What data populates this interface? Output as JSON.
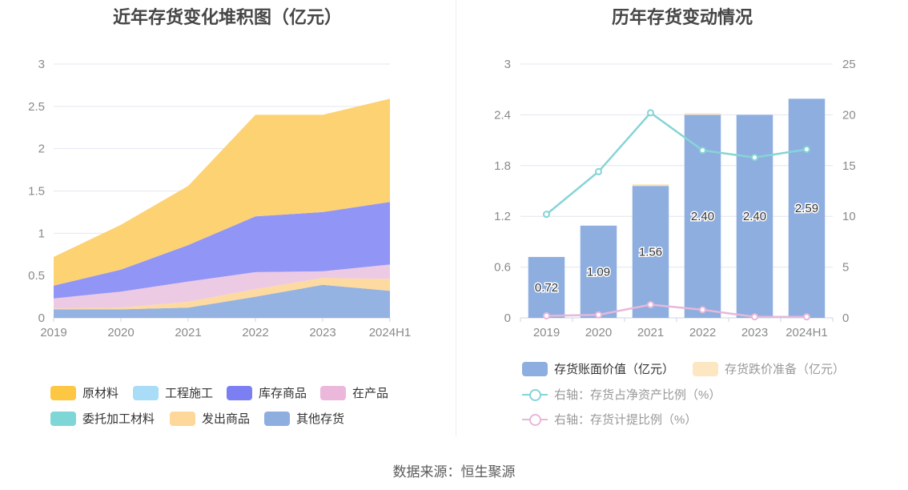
{
  "source": "数据来源：恒生聚源",
  "chart_data": [
    {
      "type": "area",
      "stacked": true,
      "title": "近年存货变化堆积图（亿元）",
      "categories": [
        "2019",
        "2020",
        "2021",
        "2022",
        "2023",
        "2024H1"
      ],
      "ylim": [
        0,
        3
      ],
      "yticks": [
        "0",
        "0.5",
        "1",
        "1.5",
        "2",
        "2.5",
        "3"
      ],
      "grid": true,
      "legend_position": "bottom",
      "series": [
        {
          "name": "其他存货",
          "color": "#8eaee0",
          "values": [
            0.1,
            0.1,
            0.12,
            0.25,
            0.39,
            0.32
          ]
        },
        {
          "name": "发出商品",
          "color": "#fdd89a",
          "values": [
            0.01,
            0.02,
            0.07,
            0.09,
            0.08,
            0.14
          ]
        },
        {
          "name": "委托加工材料",
          "color": "#7fd6d6",
          "values": [
            0.0,
            0.0,
            0.0,
            0.0,
            0.0,
            0.0
          ]
        },
        {
          "name": "在产品",
          "color": "#ecc7e3",
          "values": [
            0.12,
            0.19,
            0.24,
            0.2,
            0.08,
            0.17
          ]
        },
        {
          "name": "库存商品",
          "color": "#8b8ff5",
          "values": [
            0.15,
            0.26,
            0.43,
            0.66,
            0.7,
            0.74
          ]
        },
        {
          "name": "工程施工",
          "color": "#a8dcf7",
          "values": [
            0.0,
            0.0,
            0.0,
            0.0,
            0.0,
            0.0
          ]
        },
        {
          "name": "原材料",
          "color": "#fdd06a",
          "values": [
            0.34,
            0.53,
            0.7,
            1.2,
            1.15,
            1.22
          ]
        }
      ],
      "legend": [
        {
          "name": "原材料",
          "color": "#fdc643"
        },
        {
          "name": "工程施工",
          "color": "#a8dcf7"
        },
        {
          "name": "库存商品",
          "color": "#7b7ff2"
        },
        {
          "name": "在产品",
          "color": "#ebb8db"
        },
        {
          "name": "委托加工材料",
          "color": "#7fd6d6"
        },
        {
          "name": "发出商品",
          "color": "#fdd89a"
        },
        {
          "name": "其他存货",
          "color": "#8eaee0"
        }
      ]
    },
    {
      "type": "bar",
      "title": "历年存货变动情况",
      "categories": [
        "2019",
        "2020",
        "2021",
        "2022",
        "2023",
        "2024H1"
      ],
      "ylim": [
        0,
        3
      ],
      "yticks": [
        "0",
        "0.6",
        "1.2",
        "1.8",
        "2.4",
        "3"
      ],
      "y2lim": [
        0,
        25
      ],
      "y2ticks": [
        "0",
        "5",
        "10",
        "15",
        "20",
        "25"
      ],
      "grid": true,
      "legend_position": "bottom",
      "bars": [
        {
          "name": "存货账面价值（亿元）",
          "color": "#8eaee0",
          "values": [
            0.72,
            1.09,
            1.56,
            2.4,
            2.4,
            2.59
          ],
          "labels": [
            "0.72",
            "1.09",
            "1.56",
            "2.40",
            "2.40",
            "2.59"
          ]
        },
        {
          "name": "存货跌价准备（亿元）",
          "color": "#fde7c2",
          "values": [
            0.0,
            0.0,
            0.02,
            0.02,
            0.0,
            0.0
          ]
        }
      ],
      "lines": [
        {
          "name": "右轴：存货占净资产比例（%）",
          "color": "#86d4d6",
          "axis": "right",
          "values": [
            10.2,
            14.4,
            20.2,
            16.5,
            15.8,
            16.6
          ]
        },
        {
          "name": "右轴：存货计提比例（%）",
          "color": "#e6b8da",
          "axis": "right",
          "values": [
            0.2,
            0.3,
            1.3,
            0.8,
            0.1,
            0.1
          ]
        }
      ]
    }
  ]
}
